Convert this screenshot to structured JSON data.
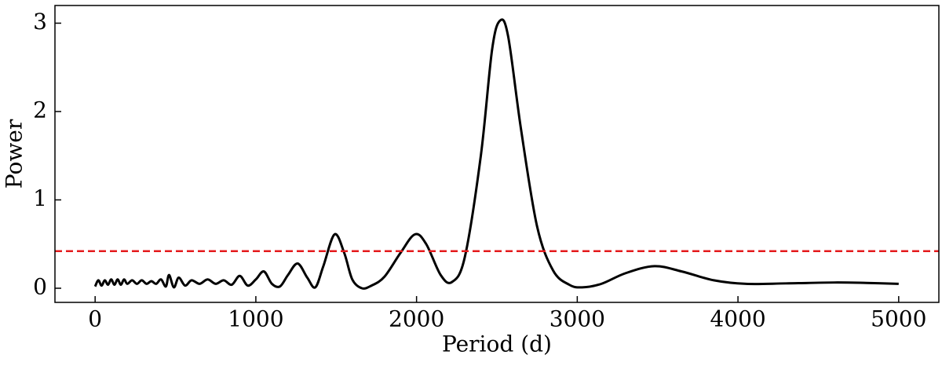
{
  "chart_data": {
    "type": "line",
    "x_label": "Period (d)",
    "y_label": "Power",
    "x": [
      0,
      20,
      40,
      60,
      80,
      100,
      120,
      140,
      160,
      180,
      200,
      230,
      260,
      290,
      320,
      350,
      380,
      410,
      440,
      460,
      490,
      520,
      560,
      600,
      650,
      700,
      750,
      800,
      850,
      900,
      950,
      1000,
      1050,
      1100,
      1150,
      1200,
      1260,
      1320,
      1370,
      1420,
      1490,
      1550,
      1600,
      1660,
      1720,
      1800,
      1900,
      1990,
      2060,
      2150,
      2220,
      2300,
      2400,
      2470,
      2520,
      2570,
      2650,
      2750,
      2850,
      2950,
      3030,
      3150,
      3300,
      3480,
      3650,
      3850,
      4050,
      4300,
      4600,
      4800,
      5000
    ],
    "series": [
      {
        "color": "#000000",
        "values": [
          0.02,
          0.09,
          0.03,
          0.09,
          0.04,
          0.1,
          0.04,
          0.1,
          0.04,
          0.1,
          0.05,
          0.09,
          0.05,
          0.09,
          0.05,
          0.08,
          0.05,
          0.1,
          0.02,
          0.15,
          0.01,
          0.12,
          0.03,
          0.09,
          0.05,
          0.1,
          0.05,
          0.09,
          0.04,
          0.14,
          0.03,
          0.1,
          0.19,
          0.05,
          0.02,
          0.15,
          0.28,
          0.12,
          0.01,
          0.25,
          0.61,
          0.4,
          0.1,
          0.0,
          0.03,
          0.13,
          0.4,
          0.61,
          0.5,
          0.15,
          0.07,
          0.35,
          1.5,
          2.7,
          3.03,
          2.85,
          1.8,
          0.7,
          0.2,
          0.04,
          0.01,
          0.05,
          0.17,
          0.25,
          0.19,
          0.09,
          0.05,
          0.055,
          0.065,
          0.06,
          0.05
        ]
      }
    ],
    "threshold": {
      "value": 0.42,
      "color": "#e41a1c",
      "style": "dashed"
    },
    "xlim": [
      -250,
      5250
    ],
    "xticks": [
      0,
      1000,
      2000,
      3000,
      4000,
      5000
    ],
    "ylim": [
      -0.16,
      3.2
    ],
    "yticks": [
      0,
      1,
      2,
      3
    ]
  }
}
